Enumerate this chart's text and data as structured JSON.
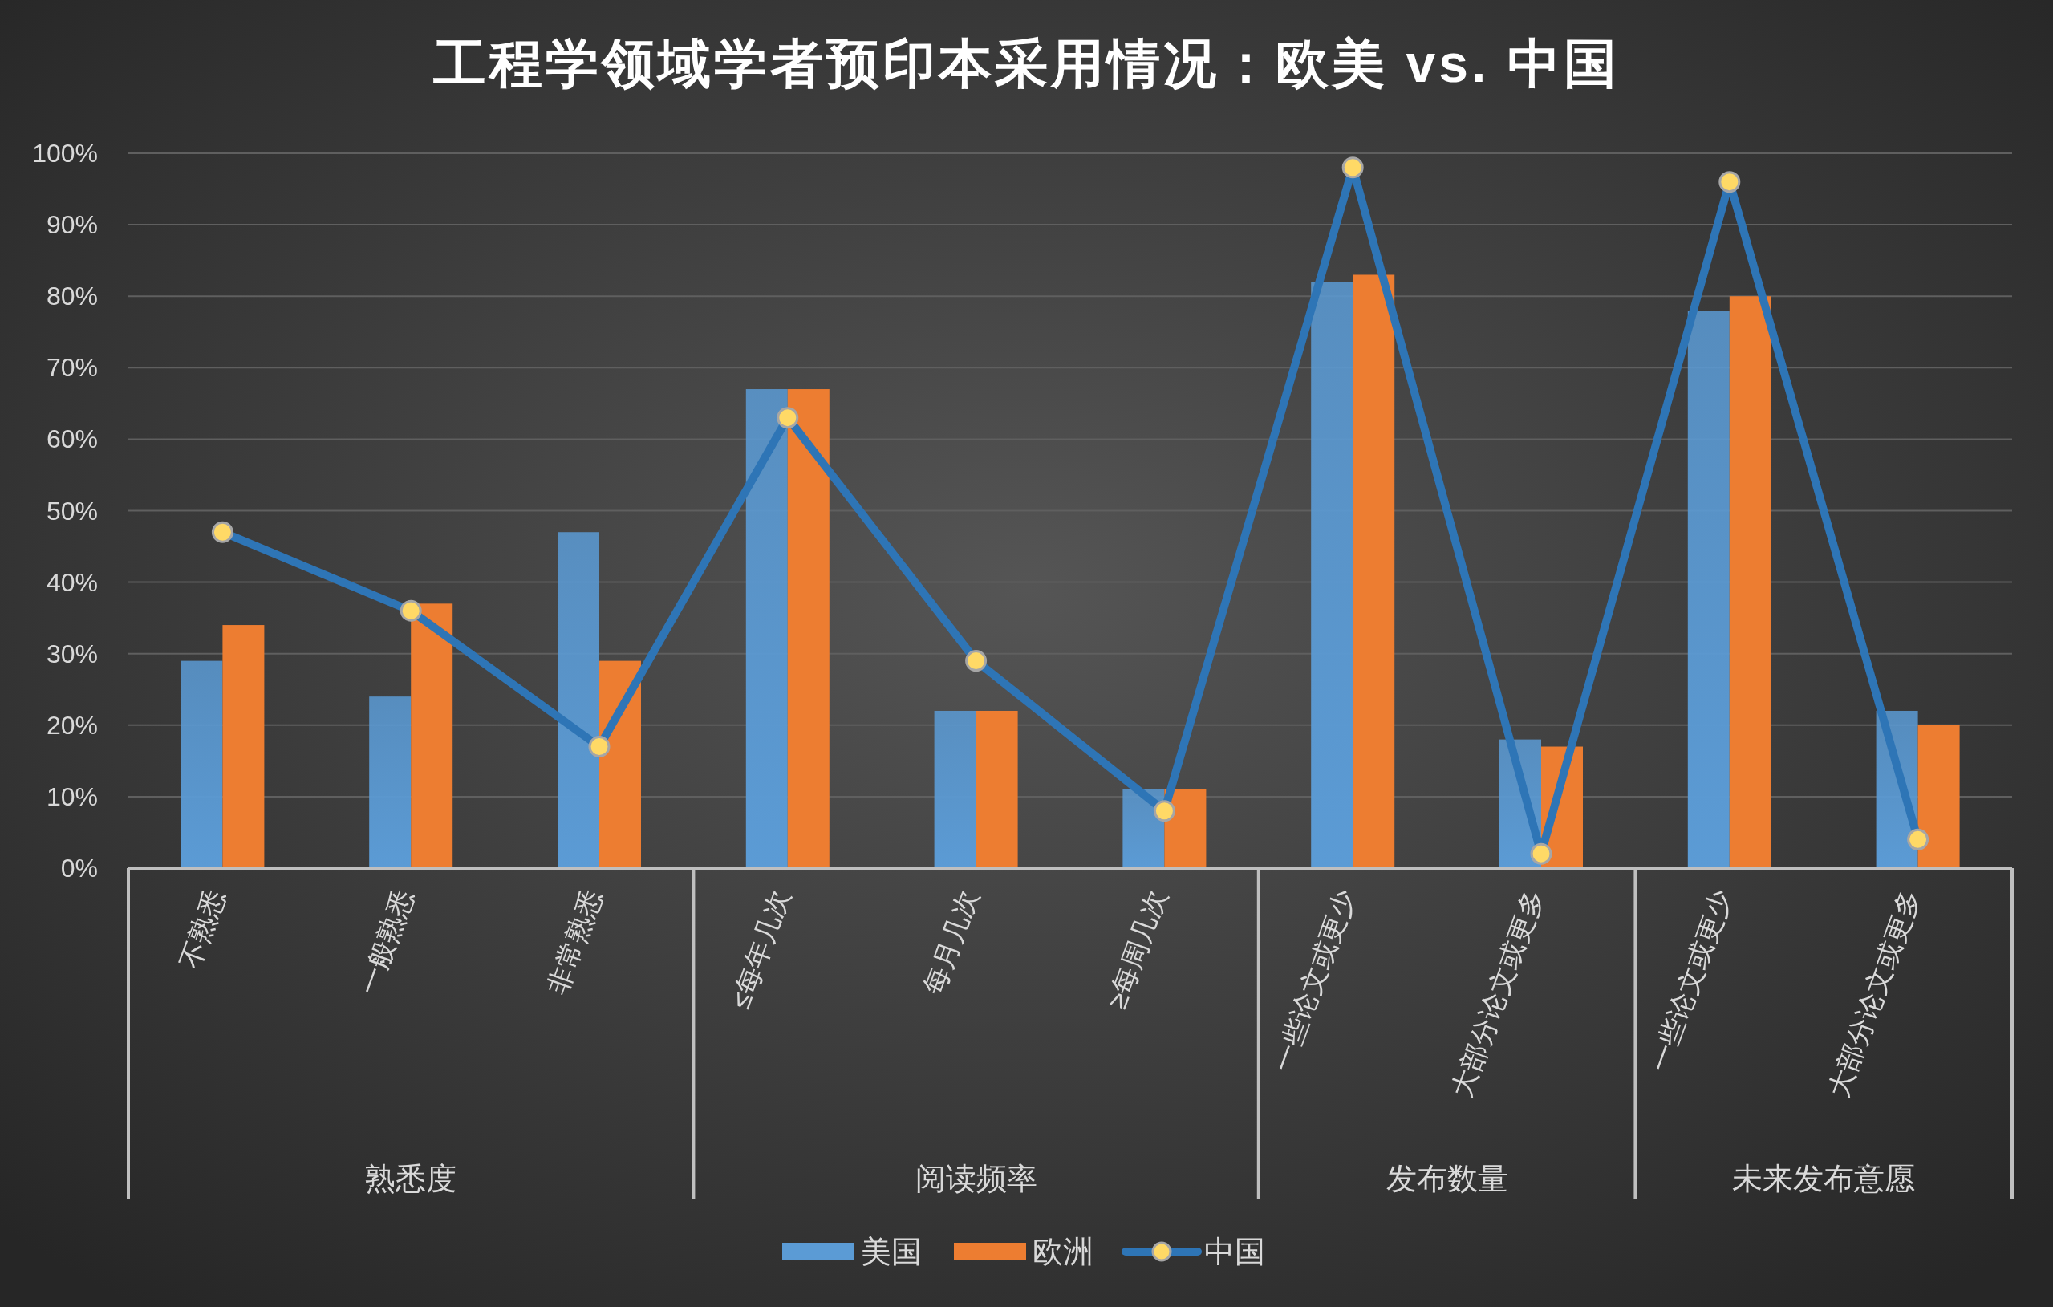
{
  "chart_data": {
    "type": "bar",
    "title": "工程学领域学者预印本采用情况：欧美 vs. 中国",
    "categories": [
      "不熟悉",
      "一般熟悉",
      "非常熟悉",
      "≤每年几次",
      "每月几次",
      "≥每周几次",
      "一些论文或更少",
      "大部分论文或更多",
      "一些论文或更少",
      "大部分论文或更多"
    ],
    "series": [
      {
        "name": "美国",
        "color": "#5b9bd5",
        "values": [
          29,
          24,
          47,
          67,
          22,
          11,
          82,
          18,
          78,
          22
        ]
      },
      {
        "name": "欧洲",
        "color": "#ed7d31",
        "values": [
          34,
          37,
          29,
          67,
          22,
          11,
          83,
          17,
          80,
          20
        ]
      },
      {
        "name": "中国",
        "type": "line",
        "color": "#2e75b6",
        "values": [
          47,
          36,
          17,
          63,
          29,
          8,
          98,
          2,
          96,
          4
        ]
      }
    ],
    "annotations": [
      "熟悉度",
      "阅读频率",
      "发布数量",
      "未来发布意愿"
    ],
    "ylim": [
      0,
      100
    ],
    "yticks": [
      {
        "value": 0,
        "label": "0%"
      },
      {
        "value": 10,
        "label": "10%"
      },
      {
        "value": 20,
        "label": "20%"
      },
      {
        "value": 30,
        "label": "30%"
      },
      {
        "value": 40,
        "label": "40%"
      },
      {
        "value": 50,
        "label": "50%"
      },
      {
        "value": 60,
        "label": "60%"
      },
      {
        "value": 70,
        "label": "70%"
      },
      {
        "value": 80,
        "label": "80%"
      },
      {
        "value": 90,
        "label": "90%"
      },
      {
        "value": 100,
        "label": "100%"
      }
    ],
    "grid": "y",
    "legend": "bottom",
    "marker": "circle",
    "line_style": "solid"
  }
}
